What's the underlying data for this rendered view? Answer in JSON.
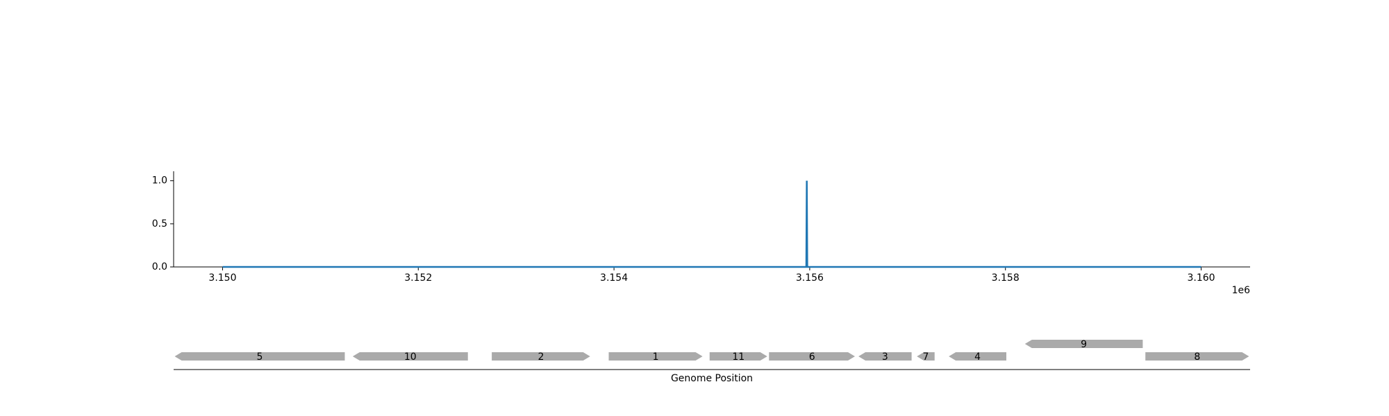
{
  "chart_data": [
    {
      "type": "line",
      "x": [
        3150000,
        3155965,
        3155970,
        3155975,
        3160000
      ],
      "values": [
        0,
        0,
        1,
        0,
        0
      ],
      "color": "#1f77b4",
      "xlim": [
        3149500,
        3160500
      ],
      "ylim": [
        0,
        1.11
      ],
      "xticks": [
        {
          "value": 3150000,
          "label": "3.150"
        },
        {
          "value": 3152000,
          "label": "3.152"
        },
        {
          "value": 3154000,
          "label": "3.154"
        },
        {
          "value": 3156000,
          "label": "3.156"
        },
        {
          "value": 3158000,
          "label": "3.158"
        },
        {
          "value": 3160000,
          "label": "3.160"
        }
      ],
      "yticks": [
        {
          "value": 0,
          "label": "0.0"
        },
        {
          "value": 0.5,
          "label": "0.5"
        },
        {
          "value": 1,
          "label": "1.0"
        }
      ],
      "x_offset_label": "1e6"
    },
    {
      "type": "gene-track",
      "xlabel": "Genome Position",
      "xlim": [
        3149500,
        3160500
      ],
      "color": "#aaaaaa",
      "features": [
        {
          "label": "5",
          "start": 3149511,
          "end": 3151249,
          "strand": -1,
          "level": 0
        },
        {
          "label": "10",
          "start": 3151330,
          "end": 3152507,
          "strand": -1,
          "level": 0
        },
        {
          "label": "2",
          "start": 3152751,
          "end": 3153756,
          "strand": 1,
          "level": 0
        },
        {
          "label": "1",
          "start": 3153946,
          "end": 3154905,
          "strand": 1,
          "level": 0
        },
        {
          "label": "11",
          "start": 3154977,
          "end": 3155566,
          "strand": 1,
          "level": 0
        },
        {
          "label": "6",
          "start": 3155584,
          "end": 3156462,
          "strand": 1,
          "level": 0
        },
        {
          "label": "3",
          "start": 3156498,
          "end": 3157041,
          "strand": -1,
          "level": 0
        },
        {
          "label": "7",
          "start": 3157095,
          "end": 3157276,
          "strand": -1,
          "level": 0
        },
        {
          "label": "4",
          "start": 3157421,
          "end": 3158009,
          "strand": -1,
          "level": 0
        },
        {
          "label": "9",
          "start": 3158199,
          "end": 3159403,
          "strand": -1,
          "level": 1
        },
        {
          "label": "8",
          "start": 3159430,
          "end": 3160489,
          "strand": 1,
          "level": 0
        }
      ]
    }
  ]
}
